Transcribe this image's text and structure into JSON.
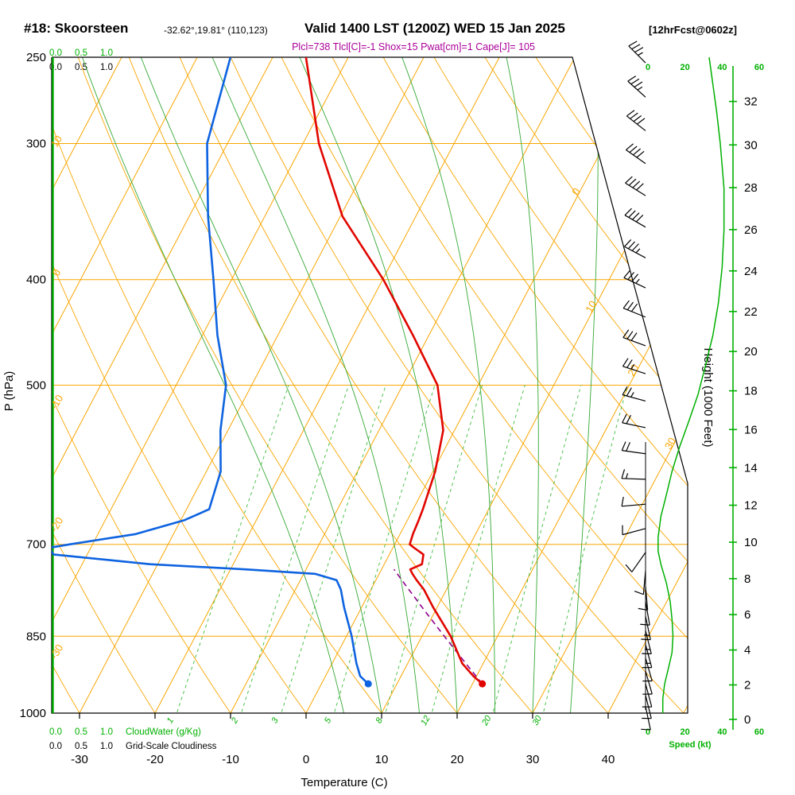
{
  "header": {
    "station": "#18: Skoorsteen",
    "coords": "-32.62°,19.81° (110,123)",
    "valid": "Valid 1400 LST (1200Z) WED 15 Jan 2025",
    "fcst": "[12hrFcst@0602z]",
    "params": "Plcl=738 Tlcl[C]=-1 Shox=15 Pwat[cm]=1 Cape[J]= 105"
  },
  "axes": {
    "pressure_label": "P (hPa)",
    "pressure_ticks": [
      250,
      300,
      400,
      500,
      700,
      850,
      1000
    ],
    "temperature_label": "Temperature (C)",
    "temperature_ticks": [
      -30,
      -20,
      -10,
      0,
      10,
      20,
      30,
      40
    ],
    "height_label": "Height (1000 Feet)",
    "height_ticks": [
      0,
      2,
      4,
      6,
      8,
      10,
      12,
      14,
      16,
      18,
      20,
      22,
      24,
      26,
      28,
      30,
      32
    ],
    "speed_label": "Speed (kt)",
    "speed_ticks": [
      0,
      20,
      40,
      60
    ]
  },
  "cloud_scales": {
    "cloudwater_ticks": [
      "0.0",
      "0.5",
      "1.0"
    ],
    "cloudwater_label": "CloudWater (g/Kg)",
    "cloudiness_ticks": [
      "0.0",
      "0.5",
      "1.0"
    ],
    "cloudiness_label": "Grid-Scale Cloudiness"
  },
  "colors": {
    "isotherm_orange": "#f9a602",
    "mixing_green": "#3dbb3d",
    "moist_green": "#35a835",
    "axis_green": "#00b000",
    "temperature_red": "#e10600",
    "dewpoint_blue": "#0e63e0",
    "parcel_magenta": "#8e008e",
    "params_magenta": "#aa0099",
    "wind_black": "#000000"
  },
  "chart_data": {
    "type": "line",
    "title": "Skew-T / Log-P forecast sounding",
    "x_axis": {
      "label": "Temperature (C)",
      "range": [
        -40,
        45
      ],
      "skewed_isotherms": true
    },
    "y_axis": {
      "label": "P (hPa)",
      "range": [
        1000,
        250
      ],
      "scale": "log"
    },
    "indices": {
      "plcl_hpa": 738,
      "tlcl_c": -1,
      "showalter": 15,
      "pwat_cm": 1,
      "cape_j": 105
    },
    "sounding_columns": [
      "pressure_hpa",
      "temperature_c",
      "dewpoint_c"
    ],
    "sounding": [
      [
        940,
        21.3,
        6.2
      ],
      [
        925,
        19.6,
        4.6
      ],
      [
        900,
        17.2,
        3.2
      ],
      [
        850,
        13.8,
        0.7
      ],
      [
        800,
        9.5,
        -2.3
      ],
      [
        770,
        7.0,
        -4.0
      ],
      [
        755,
        5.4,
        -5.2
      ],
      [
        745,
        4.4,
        -8.5
      ],
      [
        738,
        3.8,
        -18.0
      ],
      [
        730,
        5.0,
        -31.0
      ],
      [
        715,
        4.5,
        -44.5
      ],
      [
        705,
        2.8,
        -45.5
      ],
      [
        700,
        2.0,
        -43.0
      ],
      [
        685,
        1.7,
        -35.0
      ],
      [
        665,
        1.5,
        -29.5
      ],
      [
        650,
        1.3,
        -27.0
      ],
      [
        600,
        0.3,
        -28.1
      ],
      [
        550,
        -1.5,
        -31.0
      ],
      [
        500,
        -5.4,
        -33.4
      ],
      [
        450,
        -12.1,
        -38.0
      ],
      [
        400,
        -19.9,
        -42.4
      ],
      [
        350,
        -29.7,
        -47.5
      ],
      [
        300,
        -37.9,
        -52.7
      ],
      [
        250,
        -45.6,
        -55.6
      ]
    ],
    "parcel": {
      "surface_pressure": 940,
      "surface_temp": 21.3,
      "lcl_pressure": 738
    },
    "wind_barb_columns": [
      "pressure_hpa",
      "speed_kt",
      "direction_deg"
    ],
    "wind_barbs": [
      [
        253,
        35,
        315
      ],
      [
        272,
        35,
        312
      ],
      [
        292,
        40,
        308
      ],
      [
        313,
        40,
        305
      ],
      [
        335,
        40,
        302
      ],
      [
        358,
        40,
        300
      ],
      [
        382,
        35,
        298
      ],
      [
        407,
        35,
        295
      ],
      [
        433,
        30,
        292
      ],
      [
        460,
        30,
        290
      ],
      [
        488,
        25,
        288
      ],
      [
        517,
        25,
        285
      ],
      [
        547,
        20,
        282
      ],
      [
        578,
        20,
        278
      ],
      [
        610,
        15,
        272
      ],
      [
        643,
        12,
        265
      ],
      [
        677,
        10,
        255
      ],
      [
        712,
        8,
        215
      ],
      [
        740,
        10,
        185
      ],
      [
        765,
        10,
        175
      ],
      [
        790,
        12,
        170
      ],
      [
        815,
        13,
        168
      ],
      [
        840,
        14,
        166
      ],
      [
        865,
        14,
        165
      ],
      [
        890,
        12,
        164
      ],
      [
        915,
        11,
        164
      ],
      [
        940,
        10,
        165
      ],
      [
        963,
        9,
        166
      ],
      [
        986,
        8,
        168
      ]
    ],
    "wind_speed_profile": [
      [
        250,
        33
      ],
      [
        280,
        37
      ],
      [
        300,
        39
      ],
      [
        330,
        41
      ],
      [
        360,
        41
      ],
      [
        390,
        40
      ],
      [
        420,
        38
      ],
      [
        450,
        35
      ],
      [
        480,
        31
      ],
      [
        510,
        27
      ],
      [
        540,
        22
      ],
      [
        570,
        17
      ],
      [
        600,
        13
      ],
      [
        630,
        10
      ],
      [
        660,
        7
      ],
      [
        690,
        5.5
      ],
      [
        710,
        5.5
      ],
      [
        730,
        7
      ],
      [
        760,
        10
      ],
      [
        790,
        12
      ],
      [
        820,
        13
      ],
      [
        850,
        13.5
      ],
      [
        880,
        13
      ],
      [
        910,
        11
      ],
      [
        940,
        9
      ],
      [
        970,
        8
      ],
      [
        1000,
        8
      ]
    ],
    "isobars": [
      250,
      300,
      400,
      500,
      700,
      850,
      1000
    ],
    "isotherms_c": {
      "from": -120,
      "to": 50,
      "step": 10
    },
    "dry_adiabats_theta_c": {
      "from": -40,
      "to": 160,
      "step": 10
    },
    "moist_adiabats_start_c": [
      5,
      10,
      15,
      20,
      25,
      30,
      35
    ],
    "mixing_ratio_values": [
      1,
      2,
      3,
      5,
      8,
      12,
      20,
      30
    ],
    "theta_labels_left": {
      "values": [
        10,
        0,
        -10,
        -20,
        -30
      ],
      "y": [
        180,
        345,
        508,
        662,
        822
      ]
    },
    "isotherm_labels_right": {
      "values": [
        0,
        10,
        20,
        30
      ],
      "y": [
        243,
        388,
        468,
        560
      ]
    }
  }
}
